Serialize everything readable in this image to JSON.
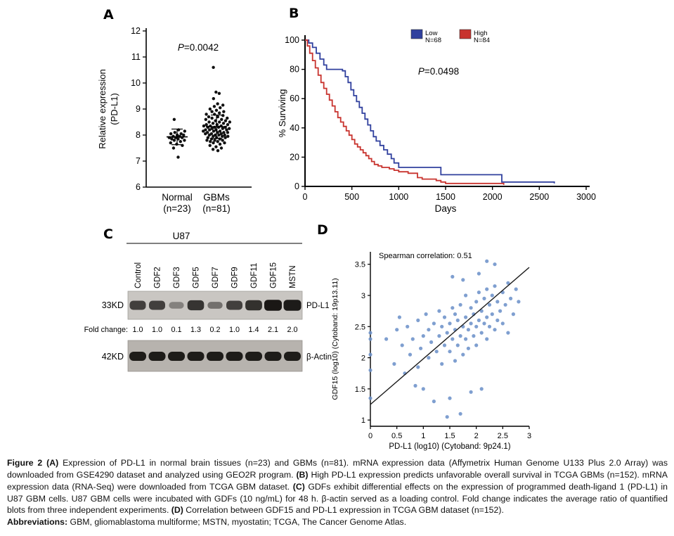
{
  "panel_letters": {
    "a": "A",
    "b": "B",
    "c": "C",
    "d": "D"
  },
  "chart_data": [
    {
      "type": "strip",
      "panel_label": "A",
      "ylabel": [
        "Relative expression",
        "(PD-L1)"
      ],
      "ylim": [
        6,
        12
      ],
      "yticks": [
        6,
        7,
        8,
        9,
        10,
        11,
        12
      ],
      "categories": [
        "Normal",
        "GBMs"
      ],
      "category_sublabels": [
        "(n=23)",
        "(n=81)"
      ],
      "p_prefix": "P",
      "p_rest": "=0.0042",
      "point_color": "#111111",
      "series": [
        {
          "name": "Normal",
          "values": [
            7.15,
            7.5,
            7.6,
            7.65,
            7.7,
            7.75,
            7.8,
            7.8,
            7.85,
            7.85,
            7.9,
            7.9,
            7.9,
            7.95,
            7.95,
            8.0,
            8.0,
            8.05,
            8.05,
            8.1,
            8.15,
            8.2,
            8.6
          ]
        },
        {
          "name": "GBMs",
          "values": [
            7.4,
            7.45,
            7.5,
            7.55,
            7.6,
            7.65,
            7.7,
            7.7,
            7.75,
            7.75,
            7.8,
            7.8,
            7.8,
            7.85,
            7.85,
            7.9,
            7.9,
            7.9,
            7.95,
            7.95,
            7.95,
            8.0,
            8.0,
            8.0,
            8.0,
            8.05,
            8.05,
            8.05,
            8.1,
            8.1,
            8.1,
            8.1,
            8.15,
            8.15,
            8.15,
            8.2,
            8.2,
            8.2,
            8.2,
            8.25,
            8.25,
            8.25,
            8.3,
            8.3,
            8.3,
            8.3,
            8.35,
            8.35,
            8.35,
            8.4,
            8.4,
            8.4,
            8.45,
            8.45,
            8.5,
            8.5,
            8.5,
            8.55,
            8.55,
            8.6,
            8.6,
            8.65,
            8.65,
            8.7,
            8.7,
            8.75,
            8.8,
            8.8,
            8.85,
            8.9,
            8.9,
            8.95,
            9.0,
            9.05,
            9.1,
            9.15,
            9.2,
            9.4,
            9.6,
            9.65,
            10.6
          ]
        }
      ],
      "mean_sd": [
        {
          "mean": 7.93,
          "sd": 0.3
        },
        {
          "mean": 8.32,
          "sd": 0.45
        }
      ]
    },
    {
      "type": "km",
      "panel_label": "B",
      "xlabel": "Days",
      "ylabel": "% Surviving",
      "xlim": [
        0,
        3000
      ],
      "ylim": [
        0,
        100
      ],
      "xticks": [
        0,
        500,
        1000,
        1500,
        2000,
        2500,
        3000
      ],
      "yticks": [
        0,
        20,
        40,
        60,
        80,
        100
      ],
      "p_prefix": "P",
      "p_rest": "=0.0498",
      "legend": [
        {
          "name": "Low",
          "n": "N=68",
          "color": "#30409e"
        },
        {
          "name": "High",
          "n": "N=84",
          "color": "#c8332e"
        }
      ],
      "series": [
        {
          "name": "Low",
          "color": "#30409e",
          "points": [
            [
              0,
              100
            ],
            [
              40,
              98
            ],
            [
              80,
              95
            ],
            [
              120,
              91
            ],
            [
              160,
              87
            ],
            [
              200,
              83
            ],
            [
              230,
              80
            ],
            [
              400,
              79
            ],
            [
              430,
              75
            ],
            [
              460,
              71
            ],
            [
              490,
              66
            ],
            [
              520,
              62
            ],
            [
              550,
              58
            ],
            [
              580,
              54
            ],
            [
              610,
              50
            ],
            [
              640,
              46
            ],
            [
              670,
              42
            ],
            [
              700,
              38
            ],
            [
              730,
              34
            ],
            [
              760,
              31
            ],
            [
              800,
              28
            ],
            [
              840,
              25
            ],
            [
              880,
              22
            ],
            [
              920,
              19
            ],
            [
              950,
              16
            ],
            [
              1000,
              13
            ],
            [
              1400,
              13
            ],
            [
              1450,
              8
            ],
            [
              2050,
              8
            ],
            [
              2100,
              3
            ],
            [
              2650,
              3
            ],
            [
              2660,
              2
            ]
          ]
        },
        {
          "name": "High",
          "color": "#c8332e",
          "points": [
            [
              0,
              100
            ],
            [
              25,
              96
            ],
            [
              50,
              91
            ],
            [
              80,
              86
            ],
            [
              110,
              81
            ],
            [
              140,
              76
            ],
            [
              170,
              71
            ],
            [
              200,
              67
            ],
            [
              230,
              63
            ],
            [
              260,
              59
            ],
            [
              290,
              55
            ],
            [
              320,
              51
            ],
            [
              350,
              47
            ],
            [
              380,
              44
            ],
            [
              410,
              41
            ],
            [
              440,
              38
            ],
            [
              470,
              35
            ],
            [
              500,
              32
            ],
            [
              530,
              29
            ],
            [
              560,
              27
            ],
            [
              590,
              25
            ],
            [
              620,
              23
            ],
            [
              650,
              21
            ],
            [
              680,
              19
            ],
            [
              710,
              17
            ],
            [
              740,
              15
            ],
            [
              780,
              14
            ],
            [
              820,
              13
            ],
            [
              900,
              12
            ],
            [
              950,
              11
            ],
            [
              1000,
              10
            ],
            [
              1100,
              9
            ],
            [
              1200,
              6
            ],
            [
              1250,
              5
            ],
            [
              1400,
              4
            ],
            [
              1450,
              3
            ],
            [
              1500,
              2
            ],
            [
              2100,
              2
            ],
            [
              2120,
              1
            ]
          ]
        }
      ]
    },
    {
      "type": "western_blot",
      "panel_label": "C",
      "cell_line": "U87",
      "lanes": [
        "Control",
        "GDF2",
        "GDF3",
        "GDF5",
        "GDF7",
        "GDF9",
        "GDF11",
        "GDF15",
        "MSTN"
      ],
      "marker1": "33KD",
      "band1": "PD-L1",
      "fold_label": "Fold change:",
      "fold_values": [
        "1.0",
        "1.0",
        "0.1",
        "1.3",
        "0.2",
        "1.0",
        "1.4",
        "2.1",
        "2.0"
      ],
      "band1_intensities": [
        1.0,
        1.0,
        0.1,
        1.3,
        0.2,
        1.0,
        1.4,
        2.1,
        2.0
      ],
      "marker2": "42KD",
      "band2": "β-Actin",
      "band2_intensities": [
        1,
        1,
        1,
        1,
        1,
        1,
        1,
        1,
        1
      ]
    },
    {
      "type": "scatter",
      "panel_label": "D",
      "annotation": "Spearman correlation: 0.51",
      "xlabel": "PD-L1 (log10) (Cytoband: 9p24.1)",
      "ylabel": "GDF15 (log10) (Cytoband: 19p13.11)",
      "xlim": [
        0,
        3
      ],
      "ylim": [
        0.9,
        3.7
      ],
      "xticks": [
        0,
        0.5,
        1,
        1.5,
        2,
        2.5,
        3
      ],
      "yticks": [
        1,
        1.5,
        2,
        2.5,
        3,
        3.5
      ],
      "point_color": "#6d92c9",
      "trend_line": {
        "x1": 0,
        "y1": 1.25,
        "x2": 3,
        "y2": 3.45
      },
      "points": [
        [
          0,
          1.35
        ],
        [
          0,
          1.8
        ],
        [
          0,
          2.05
        ],
        [
          0,
          2.3
        ],
        [
          0,
          2.4
        ],
        [
          0.3,
          2.3
        ],
        [
          0.45,
          1.9
        ],
        [
          0.5,
          2.45
        ],
        [
          0.55,
          2.65
        ],
        [
          0.6,
          2.2
        ],
        [
          0.65,
          1.75
        ],
        [
          0.7,
          2.5
        ],
        [
          0.75,
          2.05
        ],
        [
          0.8,
          2.3
        ],
        [
          0.85,
          1.55
        ],
        [
          0.9,
          1.85
        ],
        [
          0.9,
          2.6
        ],
        [
          0.95,
          2.15
        ],
        [
          1.0,
          1.5
        ],
        [
          1.0,
          2.35
        ],
        [
          1.05,
          2.7
        ],
        [
          1.1,
          2.0
        ],
        [
          1.1,
          2.45
        ],
        [
          1.15,
          2.25
        ],
        [
          1.2,
          1.3
        ],
        [
          1.2,
          2.55
        ],
        [
          1.25,
          2.1
        ],
        [
          1.3,
          2.35
        ],
        [
          1.3,
          2.75
        ],
        [
          1.35,
          1.9
        ],
        [
          1.35,
          2.5
        ],
        [
          1.4,
          2.2
        ],
        [
          1.4,
          2.65
        ],
        [
          1.45,
          1.05
        ],
        [
          1.45,
          2.4
        ],
        [
          1.5,
          1.35
        ],
        [
          1.5,
          2.1
        ],
        [
          1.5,
          2.55
        ],
        [
          1.55,
          2.3
        ],
        [
          1.55,
          2.8
        ],
        [
          1.55,
          3.3
        ],
        [
          1.6,
          1.95
        ],
        [
          1.6,
          2.45
        ],
        [
          1.6,
          2.7
        ],
        [
          1.65,
          2.2
        ],
        [
          1.65,
          2.6
        ],
        [
          1.7,
          1.1
        ],
        [
          1.7,
          2.35
        ],
        [
          1.7,
          2.85
        ],
        [
          1.75,
          2.05
        ],
        [
          1.75,
          2.5
        ],
        [
          1.75,
          3.25
        ],
        [
          1.8,
          2.3
        ],
        [
          1.8,
          2.65
        ],
        [
          1.8,
          3.0
        ],
        [
          1.85,
          2.15
        ],
        [
          1.85,
          2.45
        ],
        [
          1.9,
          1.45
        ],
        [
          1.9,
          2.55
        ],
        [
          1.9,
          2.8
        ],
        [
          1.95,
          2.35
        ],
        [
          1.95,
          2.7
        ],
        [
          2.0,
          2.2
        ],
        [
          2.0,
          2.5
        ],
        [
          2.0,
          2.9
        ],
        [
          2.05,
          2.6
        ],
        [
          2.05,
          3.05
        ],
        [
          2.05,
          3.35
        ],
        [
          2.1,
          1.5
        ],
        [
          2.1,
          2.4
        ],
        [
          2.1,
          2.75
        ],
        [
          2.15,
          2.55
        ],
        [
          2.15,
          2.95
        ],
        [
          2.2,
          2.3
        ],
        [
          2.2,
          2.65
        ],
        [
          2.2,
          3.1
        ],
        [
          2.2,
          3.55
        ],
        [
          2.25,
          2.5
        ],
        [
          2.25,
          2.85
        ],
        [
          2.3,
          2.7
        ],
        [
          2.3,
          3.0
        ],
        [
          2.35,
          2.45
        ],
        [
          2.35,
          3.15
        ],
        [
          2.35,
          3.5
        ],
        [
          2.4,
          2.6
        ],
        [
          2.4,
          2.9
        ],
        [
          2.45,
          2.75
        ],
        [
          2.5,
          2.55
        ],
        [
          2.5,
          3.05
        ],
        [
          2.55,
          2.85
        ],
        [
          2.6,
          2.4
        ],
        [
          2.6,
          3.2
        ],
        [
          2.65,
          2.95
        ],
        [
          2.7,
          2.7
        ],
        [
          2.75,
          3.1
        ],
        [
          2.8,
          2.9
        ]
      ]
    }
  ],
  "caption": {
    "paragraphs": [
      [
        {
          "b": 1,
          "t": "Figure 2 (A) "
        },
        {
          "b": 0,
          "t": "Expression of PD-L1 in normal brain tissues (n=23) and GBMs (n=81). mRNA expression data (Affymetrix Human Genome U133 Plus 2.0 Array) was downloaded from GSE4290 dataset and analyzed using GEO2R program. "
        },
        {
          "b": 1,
          "t": "(B) "
        },
        {
          "b": 0,
          "t": "High PD-L1 expression predicts unfavorable overall survival in TCGA GBMs (n=152). mRNA expression data (RNA-Seq) were downloaded from TCGA GBM dataset. "
        },
        {
          "b": 1,
          "t": "(C) "
        },
        {
          "b": 0,
          "t": "GDFs exhibit differential effects on the expression of programmed death-ligand 1 (PD-L1) in U87 GBM cells. U87 GBM cells were incubated with GDFs (10 ng/mL) for 48 h. β-actin served as a loading control. Fold change indicates the average ratio of quantified blots from three independent experiments. "
        },
        {
          "b": 1,
          "t": "(D) "
        },
        {
          "b": 0,
          "t": "Correlation between GDF15 and PD-L1 expression in TCGA GBM dataset (n=152)."
        }
      ],
      [
        {
          "b": 1,
          "t": "Abbreviations: "
        },
        {
          "b": 0,
          "t": "GBM, gliomablastoma multiforme; MSTN, myostatin; TCGA, The Cancer Genome Atlas."
        }
      ]
    ]
  }
}
